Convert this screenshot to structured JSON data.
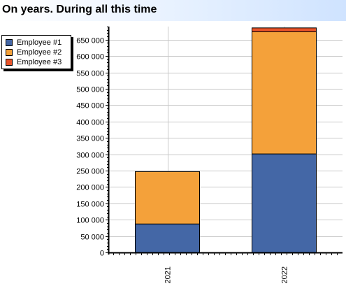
{
  "page": {
    "title": "On years. During all this time"
  },
  "legend": {
    "items": [
      {
        "label": "Employee #1",
        "color": "#4467a6"
      },
      {
        "label": "Employee #2",
        "color": "#f4a13a"
      },
      {
        "label": "Employee #3",
        "color": "#e8542a"
      }
    ]
  },
  "chart_data": {
    "type": "bar",
    "stacked": true,
    "title": "On years. During all this time",
    "categories": [
      "2021",
      "2022"
    ],
    "series": [
      {
        "name": "Employee #1",
        "color": "#4467a6",
        "values": [
          87000,
          301000
        ]
      },
      {
        "name": "Employee #2",
        "color": "#f4a13a",
        "values": [
          160000,
          373000
        ]
      },
      {
        "name": "Employee #3",
        "color": "#e8542a",
        "values": [
          0,
          12000
        ]
      }
    ],
    "ylim": [
      0,
      690000
    ],
    "yticks": [
      0,
      50000,
      100000,
      150000,
      200000,
      250000,
      300000,
      350000,
      400000,
      450000,
      500000,
      550000,
      600000,
      650000
    ],
    "ytick_labels": [
      "0",
      "50 000",
      "100 000",
      "150 000",
      "200 000",
      "250 000",
      "300 000",
      "350 000",
      "400 000",
      "450 000",
      "500 000",
      "550 000",
      "600 000",
      "650 000"
    ],
    "grid": true,
    "legend_position": "top-left",
    "xlabel": "",
    "ylabel": ""
  }
}
